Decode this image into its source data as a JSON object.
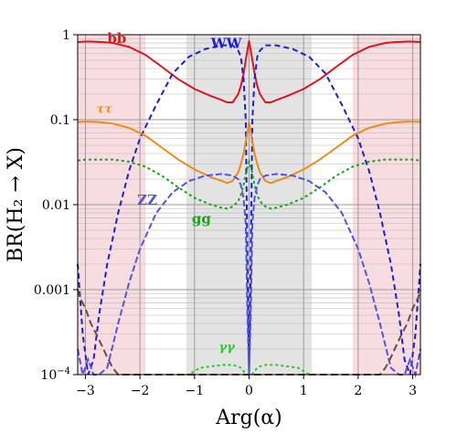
{
  "chart_data": {
    "type": "line",
    "xlabel": "Arg(α)",
    "ylabel": "BR(H₂ → X)",
    "xlim": [
      -3.14159,
      3.14159
    ],
    "ylim": [
      0.0001,
      1
    ],
    "yscale": "log",
    "x_ticks": [
      -3,
      -2,
      -1,
      0,
      1,
      2,
      3
    ],
    "x_tick_labels": [
      "−3",
      "−2",
      "−1",
      "0",
      "1",
      "2",
      "3"
    ],
    "y_ticks": [
      1,
      0.1,
      0.01,
      0.001,
      0.0001
    ],
    "y_tick_labels": [
      "1",
      "0.1",
      "0.01",
      "0.001",
      "10−4"
    ],
    "grid": true,
    "shaded_regions": [
      {
        "from": -3.14159,
        "to": -1.9,
        "color": "#f8dde0"
      },
      {
        "from": -1.15,
        "to": 1.15,
        "color": "#e3e3e3"
      },
      {
        "from": 1.9,
        "to": 3.14159,
        "color": "#f8dde0"
      }
    ],
    "series": [
      {
        "name": "bb",
        "color": "#e0141b",
        "dash": "solid",
        "x": [
          0,
          0.05,
          0.1,
          0.15,
          0.2,
          0.3,
          0.4,
          0.5,
          0.7,
          1.0,
          1.3,
          1.6,
          1.9,
          2.2,
          2.5,
          2.7,
          2.9,
          3.0,
          3.14159
        ],
        "y": [
          0.85,
          0.55,
          0.35,
          0.25,
          0.2,
          0.16,
          0.16,
          0.17,
          0.19,
          0.23,
          0.3,
          0.42,
          0.58,
          0.72,
          0.8,
          0.82,
          0.83,
          0.83,
          0.82
        ]
      },
      {
        "name": "WW",
        "color": "#1a1ed6",
        "dash": "6,4",
        "x": [
          0,
          0.03,
          0.06,
          0.1,
          0.15,
          0.2,
          0.3,
          0.5,
          0.8,
          1.1,
          1.4,
          1.7,
          2.0,
          2.2,
          2.4,
          2.6,
          2.75,
          2.85,
          2.95,
          3.05,
          3.14159
        ],
        "y": [
          0.0001,
          0.002,
          0.1,
          0.3,
          0.55,
          0.65,
          0.75,
          0.75,
          0.68,
          0.55,
          0.35,
          0.15,
          0.06,
          0.025,
          0.008,
          0.002,
          0.0005,
          0.00015,
          0.0001,
          0.0003,
          0.002
        ]
      },
      {
        "name": "ττ",
        "color": "#ee8a16",
        "dash": "solid",
        "x": [
          0,
          0.05,
          0.1,
          0.15,
          0.2,
          0.3,
          0.4,
          0.5,
          0.7,
          1.0,
          1.3,
          1.6,
          1.9,
          2.2,
          2.5,
          2.7,
          2.9,
          3.0,
          3.14159
        ],
        "y": [
          0.095,
          0.06,
          0.04,
          0.03,
          0.024,
          0.019,
          0.018,
          0.019,
          0.021,
          0.026,
          0.034,
          0.047,
          0.065,
          0.08,
          0.09,
          0.093,
          0.095,
          0.095,
          0.094
        ]
      },
      {
        "name": "gg",
        "color": "#12a812",
        "dash": "3,3",
        "x": [
          0,
          0.05,
          0.1,
          0.15,
          0.2,
          0.3,
          0.4,
          0.5,
          0.7,
          1.0,
          1.3,
          1.6,
          1.9,
          2.2,
          2.5,
          2.7,
          2.9,
          3.0,
          3.14159
        ],
        "y": [
          0.032,
          0.025,
          0.017,
          0.013,
          0.011,
          0.0095,
          0.009,
          0.0092,
          0.01,
          0.012,
          0.016,
          0.022,
          0.028,
          0.032,
          0.034,
          0.034,
          0.034,
          0.034,
          0.033
        ]
      },
      {
        "name": "ZZ",
        "color": "#5252e6",
        "dash": "7,3",
        "x": [
          0,
          0.03,
          0.06,
          0.1,
          0.15,
          0.2,
          0.3,
          0.5,
          0.8,
          1.1,
          1.4,
          1.7,
          2.0,
          2.2,
          2.4,
          2.6,
          2.75,
          2.85,
          2.95,
          3.05,
          3.14159
        ],
        "y": [
          0.0001,
          0.0005,
          0.006,
          0.012,
          0.017,
          0.02,
          0.022,
          0.023,
          0.022,
          0.019,
          0.014,
          0.008,
          0.003,
          0.0012,
          0.0004,
          0.00012,
          0.0001,
          0.0001,
          0.00015,
          0.0001,
          0.0002
        ]
      },
      {
        "name": "γγ",
        "color": "#22cc22",
        "dash": "3,3",
        "x": [
          0.05,
          0.1,
          0.15,
          0.2,
          0.3,
          0.5,
          0.7,
          0.9,
          1.0,
          1.05,
          1.1,
          1.15
        ],
        "y": [
          0.0001,
          0.00011,
          0.00012,
          0.000125,
          0.00013,
          0.00013,
          0.000125,
          0.00012,
          0.00011,
          0.000105,
          0.0001,
          0.0001
        ]
      },
      {
        "name": "",
        "color": "#6b4a4a",
        "dash": "8,4",
        "x": [
          2.4,
          2.5,
          2.6,
          2.7,
          2.8,
          2.9,
          3.0,
          3.1,
          3.14159
        ],
        "y": [
          0.0001,
          0.00012,
          0.00016,
          0.00022,
          0.0003,
          0.0004,
          0.0006,
          0.0008,
          0.001
        ]
      }
    ],
    "labels": [
      {
        "text": "bb",
        "x": -2.6,
        "y": 0.8,
        "color": "#e0141b",
        "style": "bold"
      },
      {
        "text": "WW",
        "x": -0.7,
        "y": 0.7,
        "color": "#1a1ed6",
        "style": "bold"
      },
      {
        "text": "ττ",
        "x": -2.8,
        "y": 0.12,
        "color": "#ee8a16",
        "style": "small"
      },
      {
        "text": "ZZ",
        "x": -2.05,
        "y": 0.01,
        "color": "#5252e6",
        "style": "bold"
      },
      {
        "text": "gg",
        "x": -1.05,
        "y": 0.006,
        "color": "#12a812",
        "style": "bold"
      },
      {
        "text": "γγ",
        "x": -0.55,
        "y": 0.00019,
        "color": "#22cc22",
        "style": "small"
      }
    ]
  }
}
